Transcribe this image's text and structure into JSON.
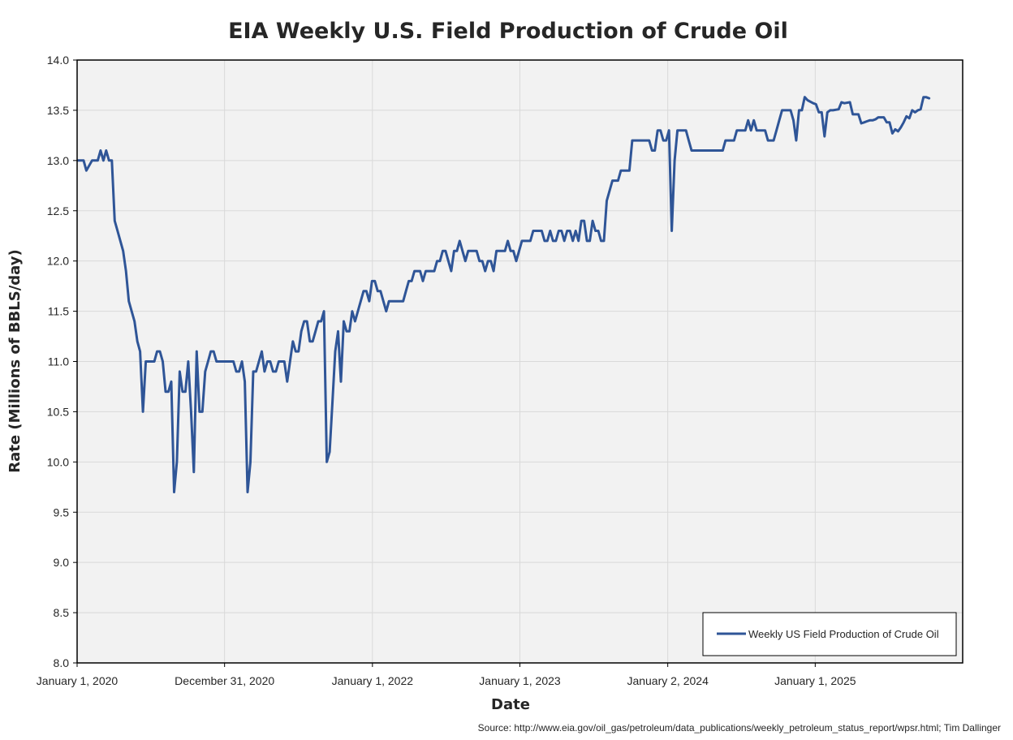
{
  "chart_data": {
    "type": "line",
    "title": "EIA Weekly U.S. Field Production of Crude Oil",
    "xlabel": "Date",
    "ylabel": "Rate (Millions of BBLS/day)",
    "xlim": [
      "2020-01-01",
      "2026-01-01"
    ],
    "ylim": [
      8.0,
      14.0
    ],
    "y_ticks": [
      "8.0",
      "8.5",
      "9.0",
      "9.5",
      "10.0",
      "10.5",
      "11.0",
      "11.5",
      "12.0",
      "12.5",
      "13.0",
      "13.5",
      "14.0"
    ],
    "x_ticks": [
      {
        "date": "2020-01-01",
        "label": "January 1, 2020"
      },
      {
        "date": "2020-12-31",
        "label": "December 31, 2020"
      },
      {
        "date": "2022-01-01",
        "label": "January 1, 2022"
      },
      {
        "date": "2023-01-01",
        "label": "January 1, 2023"
      },
      {
        "date": "2024-01-02",
        "label": "January 2, 2024"
      },
      {
        "date": "2025-01-01",
        "label": "January 1, 2025"
      }
    ],
    "grid": true,
    "legend_position": "bottom-right",
    "series": [
      {
        "name": "Weekly US Field Production of Crude Oil",
        "color": "#2f5597",
        "points": [
          [
            "2020-01-03",
            13.0
          ],
          [
            "2020-01-17",
            13.0
          ],
          [
            "2020-01-24",
            12.9
          ],
          [
            "2020-02-07",
            13.0
          ],
          [
            "2020-02-21",
            13.0
          ],
          [
            "2020-02-28",
            13.1
          ],
          [
            "2020-03-06",
            13.0
          ],
          [
            "2020-03-13",
            13.1
          ],
          [
            "2020-03-20",
            13.0
          ],
          [
            "2020-03-27",
            13.0
          ],
          [
            "2020-04-03",
            12.4
          ],
          [
            "2020-04-10",
            12.3
          ],
          [
            "2020-04-24",
            12.1
          ],
          [
            "2020-05-01",
            11.9
          ],
          [
            "2020-05-08",
            11.6
          ],
          [
            "2020-05-22",
            11.4
          ],
          [
            "2020-05-29",
            11.2
          ],
          [
            "2020-06-05",
            11.1
          ],
          [
            "2020-06-12",
            10.5
          ],
          [
            "2020-06-19",
            11.0
          ],
          [
            "2020-07-10",
            11.0
          ],
          [
            "2020-07-17",
            11.1
          ],
          [
            "2020-07-24",
            11.1
          ],
          [
            "2020-07-31",
            11.0
          ],
          [
            "2020-08-07",
            10.7
          ],
          [
            "2020-08-14",
            10.7
          ],
          [
            "2020-08-21",
            10.8
          ],
          [
            "2020-08-28",
            9.7
          ],
          [
            "2020-09-04",
            10.0
          ],
          [
            "2020-09-11",
            10.9
          ],
          [
            "2020-09-18",
            10.7
          ],
          [
            "2020-09-25",
            10.7
          ],
          [
            "2020-10-02",
            11.0
          ],
          [
            "2020-10-09",
            10.5
          ],
          [
            "2020-10-16",
            9.9
          ],
          [
            "2020-10-23",
            11.1
          ],
          [
            "2020-10-30",
            10.5
          ],
          [
            "2020-11-06",
            10.5
          ],
          [
            "2020-11-13",
            10.9
          ],
          [
            "2020-11-20",
            11.0
          ],
          [
            "2020-11-27",
            11.1
          ],
          [
            "2020-12-04",
            11.1
          ],
          [
            "2020-12-11",
            11.0
          ],
          [
            "2020-12-18",
            11.0
          ],
          [
            "2021-01-22",
            11.0
          ],
          [
            "2021-01-29",
            10.9
          ],
          [
            "2021-02-05",
            10.9
          ],
          [
            "2021-02-12",
            11.0
          ],
          [
            "2021-02-19",
            10.8
          ],
          [
            "2021-02-26",
            9.7
          ],
          [
            "2021-03-05",
            10.0
          ],
          [
            "2021-03-12",
            10.9
          ],
          [
            "2021-03-19",
            10.9
          ],
          [
            "2021-03-26",
            11.0
          ],
          [
            "2021-04-02",
            11.1
          ],
          [
            "2021-04-09",
            10.9
          ],
          [
            "2021-04-16",
            11.0
          ],
          [
            "2021-04-23",
            11.0
          ],
          [
            "2021-04-30",
            10.9
          ],
          [
            "2021-05-07",
            10.9
          ],
          [
            "2021-05-14",
            11.0
          ],
          [
            "2021-05-21",
            11.0
          ],
          [
            "2021-05-28",
            11.0
          ],
          [
            "2021-06-04",
            10.8
          ],
          [
            "2021-06-11",
            11.0
          ],
          [
            "2021-06-18",
            11.2
          ],
          [
            "2021-06-25",
            11.1
          ],
          [
            "2021-07-02",
            11.1
          ],
          [
            "2021-07-09",
            11.3
          ],
          [
            "2021-07-16",
            11.4
          ],
          [
            "2021-07-23",
            11.4
          ],
          [
            "2021-07-30",
            11.2
          ],
          [
            "2021-08-06",
            11.2
          ],
          [
            "2021-08-13",
            11.3
          ],
          [
            "2021-08-20",
            11.4
          ],
          [
            "2021-08-27",
            11.4
          ],
          [
            "2021-09-03",
            11.5
          ],
          [
            "2021-09-10",
            10.0
          ],
          [
            "2021-09-17",
            10.1
          ],
          [
            "2021-09-24",
            10.6
          ],
          [
            "2021-10-01",
            11.1
          ],
          [
            "2021-10-08",
            11.3
          ],
          [
            "2021-10-15",
            10.8
          ],
          [
            "2021-10-22",
            11.4
          ],
          [
            "2021-10-29",
            11.3
          ],
          [
            "2021-11-05",
            11.3
          ],
          [
            "2021-11-12",
            11.5
          ],
          [
            "2021-11-19",
            11.4
          ],
          [
            "2021-11-26",
            11.5
          ],
          [
            "2021-12-03",
            11.6
          ],
          [
            "2021-12-10",
            11.7
          ],
          [
            "2021-12-17",
            11.7
          ],
          [
            "2021-12-24",
            11.6
          ],
          [
            "2021-12-31",
            11.8
          ],
          [
            "2022-01-07",
            11.8
          ],
          [
            "2022-01-14",
            11.7
          ],
          [
            "2022-01-21",
            11.7
          ],
          [
            "2022-01-28",
            11.6
          ],
          [
            "2022-02-04",
            11.5
          ],
          [
            "2022-02-11",
            11.6
          ],
          [
            "2022-03-18",
            11.6
          ],
          [
            "2022-03-25",
            11.7
          ],
          [
            "2022-04-01",
            11.8
          ],
          [
            "2022-04-08",
            11.8
          ],
          [
            "2022-04-15",
            11.9
          ],
          [
            "2022-04-29",
            11.9
          ],
          [
            "2022-05-06",
            11.8
          ],
          [
            "2022-05-13",
            11.9
          ],
          [
            "2022-06-03",
            11.9
          ],
          [
            "2022-06-10",
            12.0
          ],
          [
            "2022-06-17",
            12.0
          ],
          [
            "2022-06-24",
            12.1
          ],
          [
            "2022-07-01",
            12.1
          ],
          [
            "2022-07-08",
            12.0
          ],
          [
            "2022-07-15",
            11.9
          ],
          [
            "2022-07-22",
            12.1
          ],
          [
            "2022-07-29",
            12.1
          ],
          [
            "2022-08-05",
            12.2
          ],
          [
            "2022-08-12",
            12.1
          ],
          [
            "2022-08-19",
            12.0
          ],
          [
            "2022-08-26",
            12.1
          ],
          [
            "2022-09-16",
            12.1
          ],
          [
            "2022-09-23",
            12.0
          ],
          [
            "2022-09-30",
            12.0
          ],
          [
            "2022-10-07",
            11.9
          ],
          [
            "2022-10-14",
            12.0
          ],
          [
            "2022-10-21",
            12.0
          ],
          [
            "2022-10-28",
            11.9
          ],
          [
            "2022-11-04",
            12.1
          ],
          [
            "2022-11-25",
            12.1
          ],
          [
            "2022-12-02",
            12.2
          ],
          [
            "2022-12-09",
            12.1
          ],
          [
            "2022-12-16",
            12.1
          ],
          [
            "2022-12-23",
            12.0
          ],
          [
            "2022-12-30",
            12.1
          ],
          [
            "2023-01-06",
            12.2
          ],
          [
            "2023-01-27",
            12.2
          ],
          [
            "2023-02-03",
            12.3
          ],
          [
            "2023-02-24",
            12.3
          ],
          [
            "2023-03-03",
            12.2
          ],
          [
            "2023-03-10",
            12.2
          ],
          [
            "2023-03-17",
            12.3
          ],
          [
            "2023-03-24",
            12.2
          ],
          [
            "2023-03-31",
            12.2
          ],
          [
            "2023-04-07",
            12.3
          ],
          [
            "2023-04-14",
            12.3
          ],
          [
            "2023-04-21",
            12.2
          ],
          [
            "2023-04-28",
            12.3
          ],
          [
            "2023-05-05",
            12.3
          ],
          [
            "2023-05-12",
            12.2
          ],
          [
            "2023-05-19",
            12.3
          ],
          [
            "2023-05-26",
            12.2
          ],
          [
            "2023-06-02",
            12.4
          ],
          [
            "2023-06-09",
            12.4
          ],
          [
            "2023-06-16",
            12.2
          ],
          [
            "2023-06-23",
            12.2
          ],
          [
            "2023-06-30",
            12.4
          ],
          [
            "2023-07-07",
            12.3
          ],
          [
            "2023-07-14",
            12.3
          ],
          [
            "2023-07-21",
            12.2
          ],
          [
            "2023-07-28",
            12.2
          ],
          [
            "2023-08-04",
            12.6
          ],
          [
            "2023-08-11",
            12.7
          ],
          [
            "2023-08-18",
            12.8
          ],
          [
            "2023-09-01",
            12.8
          ],
          [
            "2023-09-08",
            12.9
          ],
          [
            "2023-09-29",
            12.9
          ],
          [
            "2023-10-06",
            13.2
          ],
          [
            "2023-11-17",
            13.2
          ],
          [
            "2023-11-24",
            13.1
          ],
          [
            "2023-12-01",
            13.1
          ],
          [
            "2023-12-08",
            13.3
          ],
          [
            "2023-12-15",
            13.3
          ],
          [
            "2023-12-22",
            13.2
          ],
          [
            "2023-12-29",
            13.2
          ],
          [
            "2024-01-05",
            13.3
          ],
          [
            "2024-01-12",
            12.3
          ],
          [
            "2024-01-19",
            13.0
          ],
          [
            "2024-01-26",
            13.3
          ],
          [
            "2024-02-16",
            13.3
          ],
          [
            "2024-02-23",
            13.2
          ],
          [
            "2024-03-01",
            13.1
          ],
          [
            "2024-05-17",
            13.1
          ],
          [
            "2024-05-24",
            13.2
          ],
          [
            "2024-06-14",
            13.2
          ],
          [
            "2024-06-21",
            13.3
          ],
          [
            "2024-07-12",
            13.3
          ],
          [
            "2024-07-19",
            13.4
          ],
          [
            "2024-07-26",
            13.3
          ],
          [
            "2024-08-02",
            13.4
          ],
          [
            "2024-08-09",
            13.3
          ],
          [
            "2024-08-30",
            13.3
          ],
          [
            "2024-09-06",
            13.2
          ],
          [
            "2024-09-20",
            13.2
          ],
          [
            "2024-09-27",
            13.3
          ],
          [
            "2024-10-04",
            13.4
          ],
          [
            "2024-10-11",
            13.5
          ],
          [
            "2024-11-01",
            13.5
          ],
          [
            "2024-11-08",
            13.4
          ],
          [
            "2024-11-15",
            13.2
          ],
          [
            "2024-11-22",
            13.5
          ],
          [
            "2024-11-29",
            13.5
          ],
          [
            "2024-12-06",
            13.631
          ],
          [
            "2024-12-13",
            13.6
          ],
          [
            "2024-12-27",
            13.57
          ],
          [
            "2025-01-03",
            13.56
          ],
          [
            "2025-01-10",
            13.48
          ],
          [
            "2025-01-17",
            13.48
          ],
          [
            "2025-01-24",
            13.24
          ],
          [
            "2025-01-31",
            13.48
          ],
          [
            "2025-02-07",
            13.5
          ],
          [
            "2025-02-14",
            13.5
          ],
          [
            "2025-02-28",
            13.51
          ],
          [
            "2025-03-07",
            13.58
          ],
          [
            "2025-03-14",
            13.57
          ],
          [
            "2025-03-28",
            13.58
          ],
          [
            "2025-04-04",
            13.46
          ],
          [
            "2025-04-11",
            13.46
          ],
          [
            "2025-04-18",
            13.46
          ],
          [
            "2025-04-25",
            13.37
          ],
          [
            "2025-05-02",
            13.38
          ],
          [
            "2025-05-09",
            13.39
          ],
          [
            "2025-05-16",
            13.4
          ],
          [
            "2025-05-23",
            13.4
          ],
          [
            "2025-05-30",
            13.41
          ],
          [
            "2025-06-06",
            13.43
          ],
          [
            "2025-06-13",
            13.43
          ],
          [
            "2025-06-20",
            13.43
          ],
          [
            "2025-06-27",
            13.38
          ],
          [
            "2025-07-04",
            13.38
          ],
          [
            "2025-07-11",
            13.27
          ],
          [
            "2025-07-18",
            13.31
          ],
          [
            "2025-07-25",
            13.29
          ],
          [
            "2025-08-01",
            13.33
          ],
          [
            "2025-08-08",
            13.38
          ],
          [
            "2025-08-15",
            13.44
          ],
          [
            "2025-08-22",
            13.42
          ],
          [
            "2025-08-29",
            13.5
          ],
          [
            "2025-09-05",
            13.48
          ],
          [
            "2025-09-12",
            13.5
          ],
          [
            "2025-09-19",
            13.51
          ],
          [
            "2025-09-26",
            13.63
          ],
          [
            "2025-10-03",
            13.63
          ],
          [
            "2025-10-10",
            13.62
          ]
        ]
      }
    ],
    "source": "Source: http://www.eia.gov/oil_gas/petroleum/data_publications/weekly_petroleum_status_report/wpsr.html; Tim Dallinger"
  }
}
